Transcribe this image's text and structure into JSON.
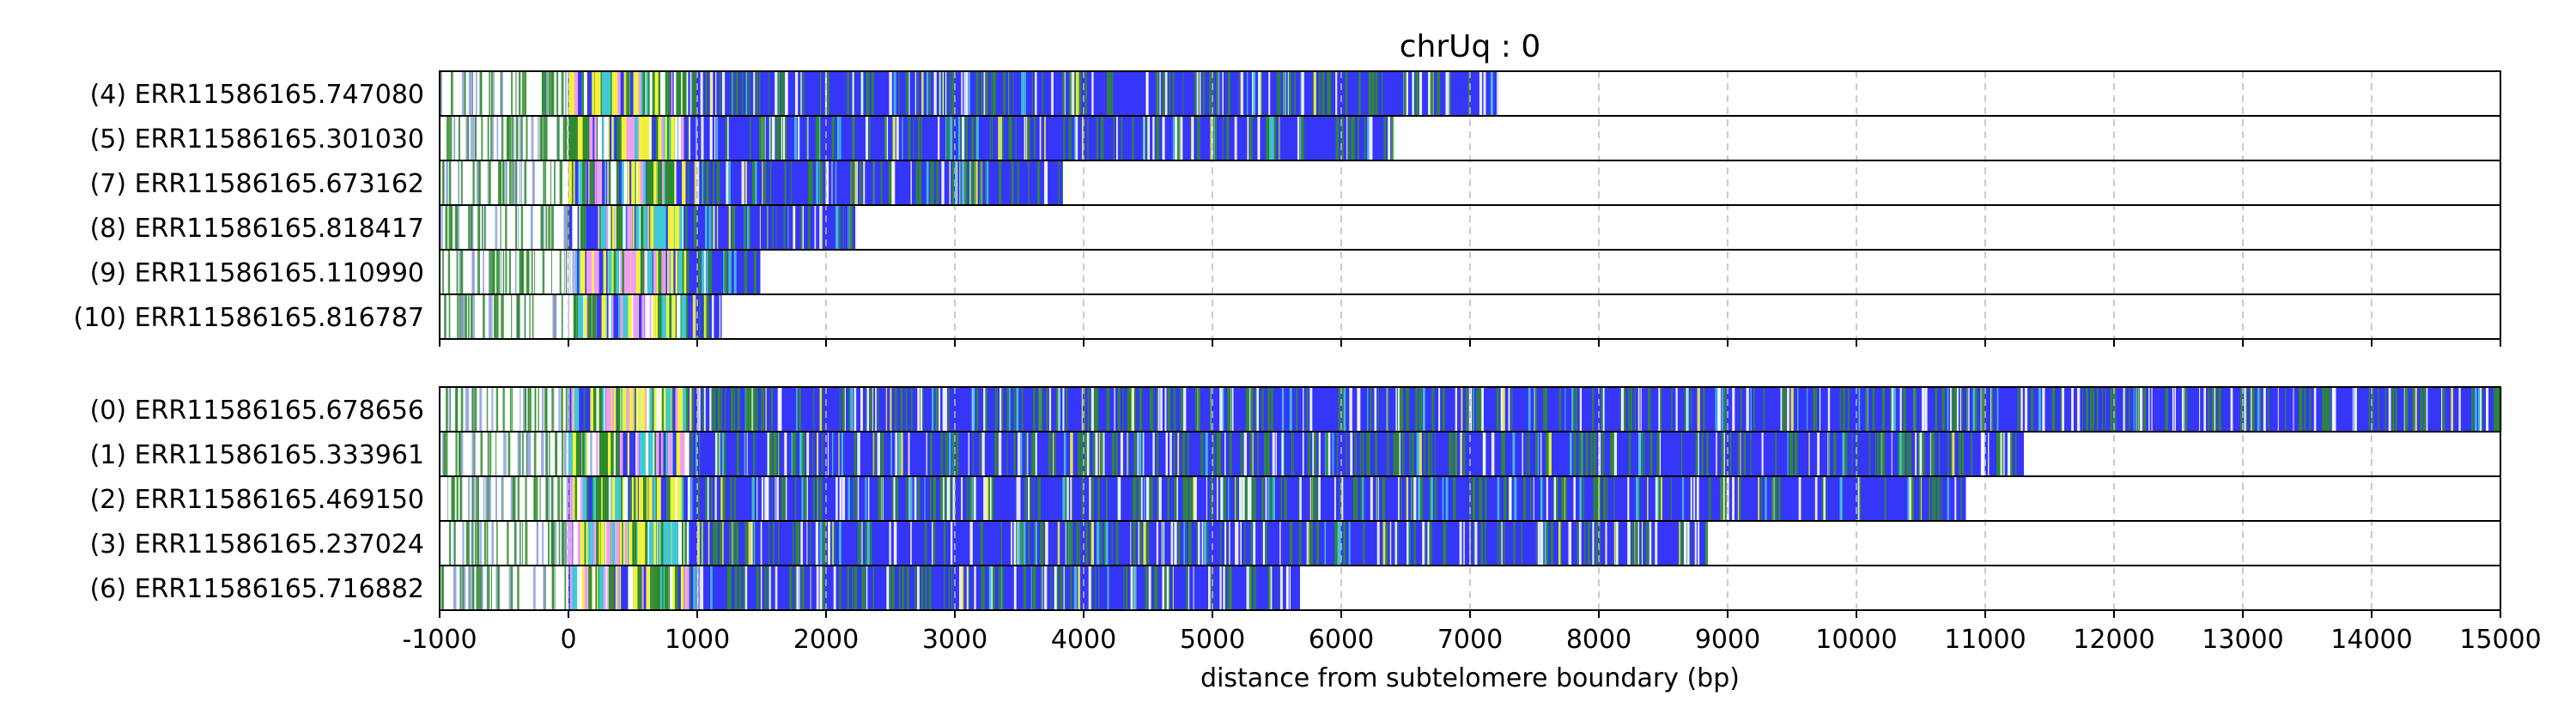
{
  "chart_data": {
    "type": "bar",
    "title": "chrUq : 0",
    "xlabel": "distance from subtelomere boundary (bp)",
    "ylabel": "",
    "xlim": [
      -1000,
      15000
    ],
    "xticks": [
      -1000,
      0,
      1000,
      2000,
      3000,
      4000,
      5000,
      6000,
      7000,
      8000,
      9000,
      10000,
      11000,
      12000,
      13000,
      14000,
      15000
    ],
    "grid": "vertical dashed",
    "colors": {
      "main": "#3636f8",
      "green": "#2e8b2e",
      "yellow": "#f2f23c",
      "pink": "#ef9ef1",
      "white": "#ffffff",
      "cyan": "#40c8d8",
      "red": "#e03030"
    },
    "panels": [
      {
        "reads": [
          {
            "label": "(4) ERR11586165.747080",
            "start": -1000,
            "end": 7220
          },
          {
            "label": "(5) ERR11586165.301030",
            "start": -1000,
            "end": 6390
          },
          {
            "label": "(7) ERR11586165.673162",
            "start": -1000,
            "end": 3840
          },
          {
            "label": "(8) ERR11586165.818417",
            "start": -1000,
            "end": 2240
          },
          {
            "label": "(9) ERR11586165.110990",
            "start": -1000,
            "end": 1490
          },
          {
            "label": "(10) ERR11586165.816787",
            "start": -1000,
            "end": 1190
          }
        ]
      },
      {
        "reads": [
          {
            "label": "(0) ERR11586165.678656",
            "start": -1000,
            "end": 15000
          },
          {
            "label": "(1) ERR11586165.333961",
            "start": -1000,
            "end": 11300
          },
          {
            "label": "(2) ERR11586165.469150",
            "start": -1000,
            "end": 10850
          },
          {
            "label": "(3) ERR11586165.237024",
            "start": -1000,
            "end": 8830
          },
          {
            "label": "(6) ERR11586165.716882",
            "start": -1000,
            "end": 5680
          }
        ]
      }
    ]
  }
}
